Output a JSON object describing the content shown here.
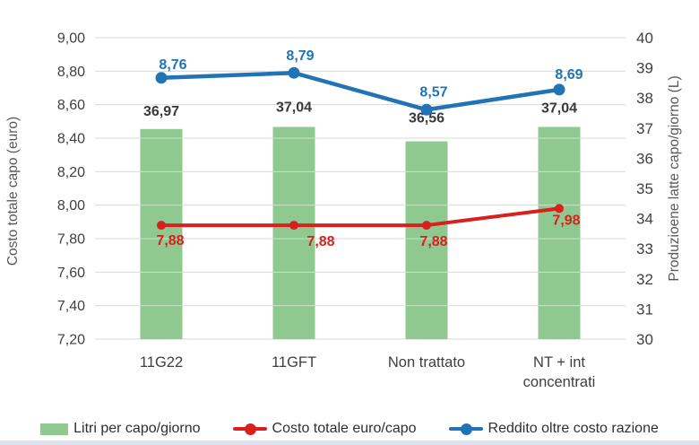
{
  "chart_data": {
    "type": "combo-bar-line",
    "categories": [
      "11G22",
      "11GFT",
      "Non trattato",
      "NT + int concentrati"
    ],
    "category_lines": [
      [
        "11G22"
      ],
      [
        "11GFT"
      ],
      [
        "Non trattato"
      ],
      [
        "NT + int",
        "concentrati"
      ]
    ],
    "series": [
      {
        "name": "Litri per capo/giorno",
        "type": "bar",
        "axis": "right",
        "color": "#8fc98f",
        "values": [
          36.97,
          37.04,
          36.56,
          37.04
        ],
        "labels": [
          "36,97",
          "37,04",
          "36,56",
          "37,04"
        ],
        "label_color": "#383838"
      },
      {
        "name": "Costo totale euro/capo",
        "type": "line",
        "axis": "left",
        "color": "#d8211e",
        "values": [
          7.88,
          7.88,
          7.88,
          7.98
        ],
        "labels": [
          "7,88",
          "7,88",
          "7,88",
          "7,98"
        ],
        "label_color": "#d8211e"
      },
      {
        "name": "Reddito oltre costo razione",
        "type": "line",
        "axis": "left",
        "color": "#2173b6",
        "values": [
          8.76,
          8.79,
          8.57,
          8.69
        ],
        "labels": [
          "8,76",
          "8,79",
          "8,57",
          "8,69"
        ],
        "label_color": "#2173b6"
      }
    ],
    "left_axis": {
      "title": "Costo totale capo (euro)",
      "min": 7.2,
      "max": 9.0,
      "step": 0.2,
      "tick_labels": [
        "9,00",
        "8,80",
        "8,60",
        "8,40",
        "8,20",
        "8,00",
        "7,80",
        "7,60",
        "7,40",
        "7,20"
      ]
    },
    "right_axis": {
      "title": "Produzioene latte capo/giorno (L)",
      "min": 30,
      "max": 40,
      "step": 1,
      "tick_labels": [
        "40",
        "39",
        "38",
        "37",
        "36",
        "35",
        "34",
        "33",
        "32",
        "31",
        "30"
      ]
    },
    "grid": true,
    "gridline_color": "#d9d9d9",
    "legend_position": "bottom"
  }
}
